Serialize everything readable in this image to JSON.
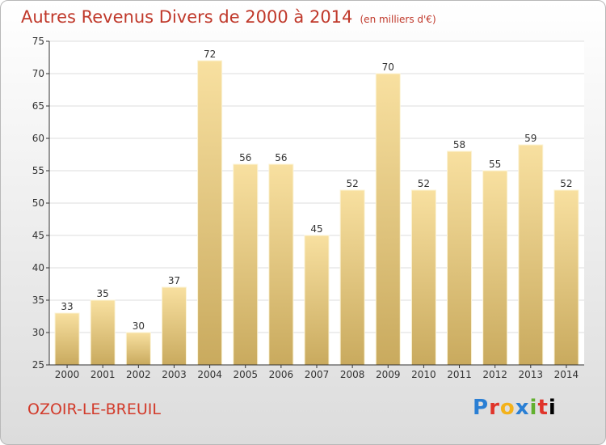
{
  "title": "Autres Revenus Divers de 2000 à 2014",
  "unit_note": "(en milliers d'€)",
  "commune": "OZOIR-LE-BREUIL",
  "logo": [
    "P",
    "r",
    "o",
    "x",
    "i",
    "t",
    "i"
  ],
  "colors": {
    "title": "#c0392b",
    "bar_light": "#f8e0a0",
    "bar_dark": "#c9aa5e",
    "bar_edge": "#fbf3d6",
    "axis": "#333333"
  },
  "chart_data": {
    "type": "bar",
    "title": "Autres Revenus Divers de 2000 à 2014",
    "xlabel": "",
    "ylabel": "",
    "ylim": [
      25,
      75
    ],
    "ytick_step": 5,
    "grid": true,
    "categories": [
      "2000",
      "2001",
      "2002",
      "2003",
      "2004",
      "2005",
      "2006",
      "2007",
      "2008",
      "2009",
      "2010",
      "2011",
      "2012",
      "2013",
      "2014"
    ],
    "values": [
      33,
      35,
      30,
      37,
      72,
      56,
      56,
      45,
      52,
      70,
      52,
      58,
      55,
      59,
      52
    ]
  }
}
